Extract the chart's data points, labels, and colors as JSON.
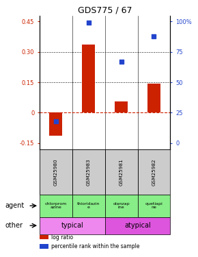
{
  "title": "GDS775 / 67",
  "samples": [
    "GSM25980",
    "GSM25983",
    "GSM25981",
    "GSM25982"
  ],
  "log_ratios": [
    -0.115,
    0.335,
    0.055,
    0.145
  ],
  "percentile_ranks": [
    18,
    99,
    67,
    88
  ],
  "bar_color": "#cc2200",
  "dot_color": "#2244cc",
  "ylim_left": [
    -0.18,
    0.48
  ],
  "ylim_right": [
    -12,
    133.33
  ],
  "yticks_left": [
    -0.15,
    0.0,
    0.15,
    0.3,
    0.45
  ],
  "ytick_labels_left": [
    "-0.15",
    "0",
    "0.15",
    "0.30",
    "0.45"
  ],
  "yticks_right": [
    0,
    25,
    50,
    75,
    100
  ],
  "ytick_labels_right": [
    "0",
    "25",
    "50",
    "75",
    "100%"
  ],
  "hlines": [
    0.15,
    0.3
  ],
  "agents": [
    "chlorprom\nazine",
    "thioridazin\ne",
    "olanzap\nine",
    "quetiapi\nne"
  ],
  "agent_color": "#88ee88",
  "other_row": [
    [
      "typical",
      2
    ],
    [
      "atypical",
      2
    ]
  ],
  "other_color_typical": "#ee88ee",
  "other_color_atypical": "#dd55dd",
  "sample_bg_color": "#cccccc",
  "legend_items": [
    {
      "color": "#cc2200",
      "label": "log ratio"
    },
    {
      "color": "#2244cc",
      "label": "percentile rank within the sample"
    }
  ]
}
